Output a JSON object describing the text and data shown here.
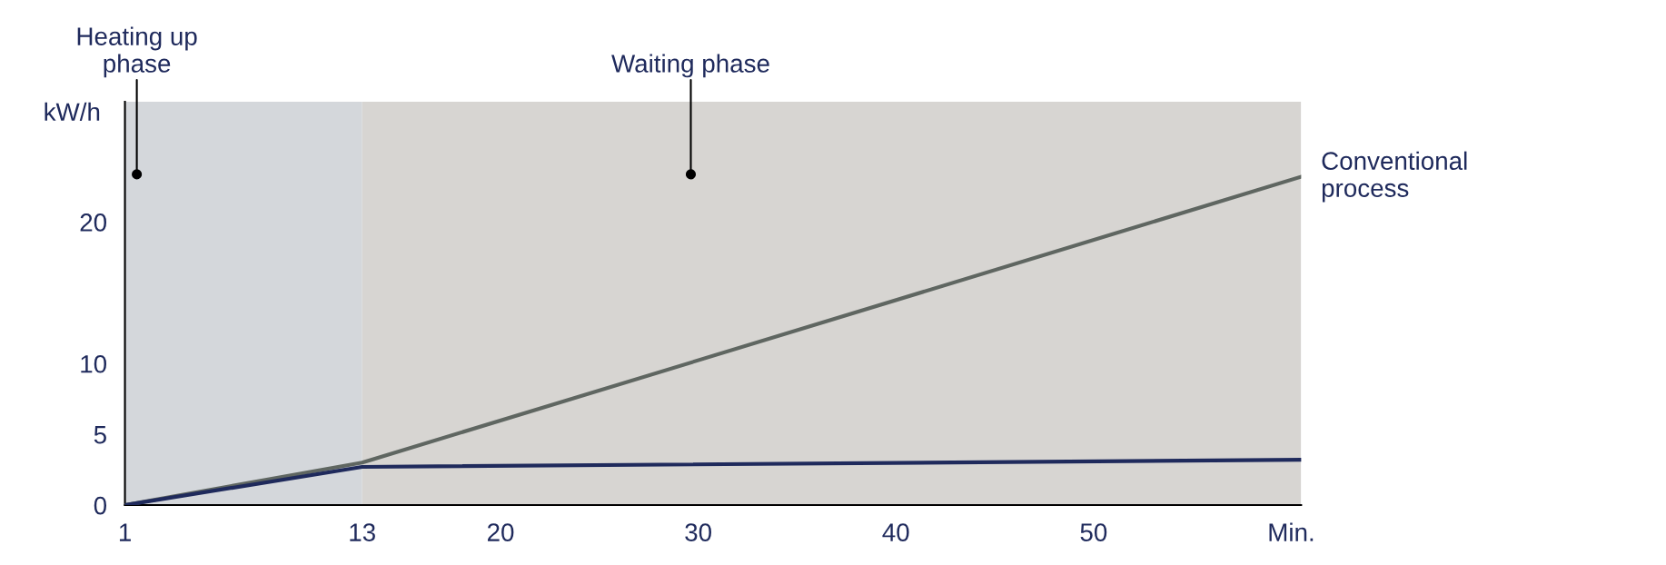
{
  "chart_data": {
    "type": "line",
    "ylabel": "kW/h",
    "x": [
      1,
      13,
      60.5
    ],
    "series": [
      {
        "name": "Conventional\nprocess",
        "color": "#5f6661",
        "values": [
          0,
          3,
          23.2
        ]
      },
      {
        "color": "#1f2a5c",
        "values": [
          0,
          2.7,
          3.2
        ]
      }
    ],
    "xlim": [
      1,
      60.5
    ],
    "xticks": [
      1,
      13,
      20,
      30,
      40,
      50,
      {
        "value": 60,
        "label": "Min."
      }
    ],
    "ylim": [
      0,
      28.5
    ],
    "yticks": [
      0,
      5,
      10,
      20
    ],
    "bands": [
      {
        "axis": "x",
        "from": 1,
        "to": 13,
        "label": "Heating up\nphase",
        "color": "#d4d7db"
      },
      {
        "axis": "x",
        "from": 13,
        "to": 60.5,
        "label": "Waiting phase",
        "color": "#d7d5d2"
      }
    ],
    "grid": false,
    "legend": false,
    "marker": "none",
    "line_style": "solid"
  }
}
